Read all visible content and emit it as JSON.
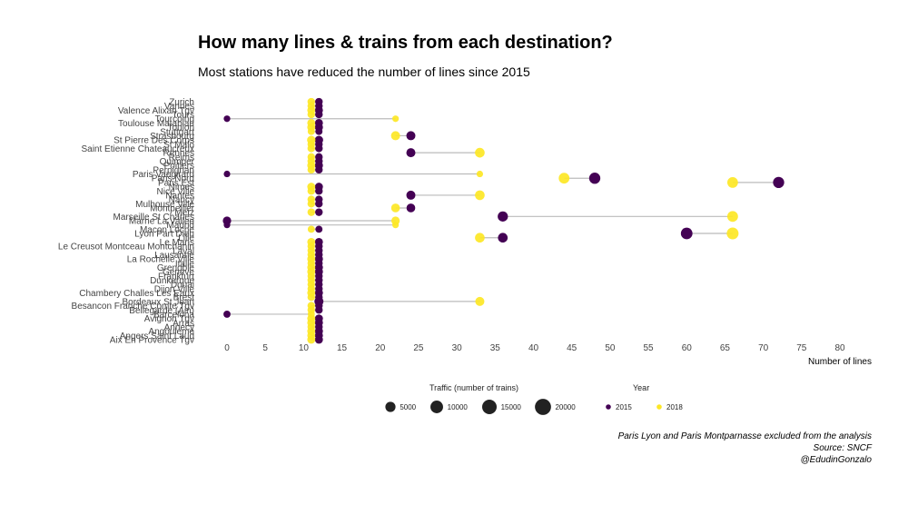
{
  "title": "How many lines & trains from each destination?",
  "subtitle": "Most stations have reduced the number of lines since 2015",
  "caption": {
    "line1": "Paris Lyon and Paris Montparnasse excluded from the analysis",
    "line2": "Source: SNCF",
    "line3": "@EdudinGonzalo"
  },
  "colors": {
    "y2015": "#440154",
    "y2018": "#FDE725",
    "segment": "#bbbbbb"
  },
  "chart_data": {
    "type": "scatter",
    "xlabel": "Number of lines",
    "xlim": [
      0,
      80
    ],
    "xticks": [
      0,
      5,
      10,
      15,
      20,
      25,
      30,
      35,
      40,
      45,
      50,
      55,
      60,
      65,
      70,
      75,
      80
    ],
    "legend": {
      "size_title": "Traffic (number of trains)",
      "size_labels": [
        "5000",
        "10000",
        "15000",
        "20000"
      ],
      "size_values": [
        5000,
        10000,
        15000,
        20000
      ],
      "year_title": "Year",
      "years": [
        "2015",
        "2018"
      ]
    },
    "stations": [
      {
        "name": "Zurich",
        "l2015": 12,
        "l2018": 11,
        "t2015": 2000,
        "t2018": 2000
      },
      {
        "name": "Vannes",
        "l2015": 12,
        "l2018": 11,
        "t2015": 2000,
        "t2018": 2000
      },
      {
        "name": "Valence Alixan Tgv",
        "l2015": 12,
        "l2018": 11,
        "t2015": 2500,
        "t2018": 2500
      },
      {
        "name": "Tours",
        "l2015": 12,
        "l2018": 11,
        "t2015": 2000,
        "t2018": 2000
      },
      {
        "name": "Tourcoing",
        "l2015": 0,
        "l2018": 22,
        "t2015": 1000,
        "t2018": 1000
      },
      {
        "name": "Toulouse Matabiau",
        "l2015": 12,
        "l2018": 11,
        "t2015": 2500,
        "t2018": 2500
      },
      {
        "name": "Toulon",
        "l2015": 12,
        "l2018": 11,
        "t2015": 2500,
        "t2018": 2500
      },
      {
        "name": "Stuttgart",
        "l2015": 12,
        "l2018": 11,
        "t2015": 1500,
        "t2018": 1500
      },
      {
        "name": "Strasbourg",
        "l2015": 24,
        "l2018": 22,
        "t2015": 4000,
        "t2018": 4000
      },
      {
        "name": "St Pierre Des Corps",
        "l2015": 12,
        "l2018": 11,
        "t2015": 3000,
        "t2018": 3000
      },
      {
        "name": "St Malo",
        "l2015": 12,
        "l2018": 11,
        "t2015": 2000,
        "t2018": 2000
      },
      {
        "name": "Saint Etienne Chateaucreux",
        "l2015": 12,
        "l2018": 11,
        "t2015": 2000,
        "t2018": 2000
      },
      {
        "name": "Rennes",
        "l2015": 24,
        "l2018": 33,
        "t2015": 4000,
        "t2018": 5000
      },
      {
        "name": "Reims",
        "l2015": 12,
        "l2018": 11,
        "t2015": 2000,
        "t2018": 2000
      },
      {
        "name": "Quimper",
        "l2015": 12,
        "l2018": 11,
        "t2015": 2000,
        "t2018": 2000
      },
      {
        "name": "Poitiers",
        "l2015": 12,
        "l2018": 11,
        "t2015": 2500,
        "t2018": 2500
      },
      {
        "name": "Perpignan",
        "l2015": 12,
        "l2018": 11,
        "t2015": 2000,
        "t2018": 2000
      },
      {
        "name": "Paris Vaugirard",
        "l2015": 0,
        "l2018": 33,
        "t2015": 1000,
        "t2018": 1000
      },
      {
        "name": "Paris Nord",
        "l2015": 48,
        "l2018": 44,
        "t2015": 8000,
        "t2018": 7000
      },
      {
        "name": "Paris Est",
        "l2015": 72,
        "l2018": 66,
        "t2015": 8000,
        "t2018": 7000
      },
      {
        "name": "Nimes",
        "l2015": 12,
        "l2018": 11,
        "t2015": 2500,
        "t2018": 2500
      },
      {
        "name": "Nice Ville",
        "l2015": 12,
        "l2018": 11,
        "t2015": 2000,
        "t2018": 2000
      },
      {
        "name": "Nantes",
        "l2015": 24,
        "l2018": 33,
        "t2015": 4000,
        "t2018": 5000
      },
      {
        "name": "Nancy",
        "l2015": 12,
        "l2018": 11,
        "t2015": 2000,
        "t2018": 2000
      },
      {
        "name": "Mulhouse Ville",
        "l2015": 12,
        "l2018": 11,
        "t2015": 2000,
        "t2018": 2000
      },
      {
        "name": "Montpellier",
        "l2015": 24,
        "l2018": 22,
        "t2015": 3500,
        "t2018": 3500
      },
      {
        "name": "Metz",
        "l2015": 12,
        "l2018": 11,
        "t2015": 2000,
        "t2018": 2000
      },
      {
        "name": "Marseille St Charles",
        "l2015": 36,
        "l2018": 66,
        "t2015": 6000,
        "t2018": 7000
      },
      {
        "name": "Marne La Vallee",
        "l2015": 0,
        "l2018": 22,
        "t2015": 3000,
        "t2018": 3000
      },
      {
        "name": "Madrid",
        "l2015": 0,
        "l2018": 22,
        "t2015": 1000,
        "t2018": 1000
      },
      {
        "name": "Macon Loche",
        "l2015": 12,
        "l2018": 11,
        "t2015": 1500,
        "t2018": 1500
      },
      {
        "name": "Lyon Part Dieu",
        "l2015": 60,
        "l2018": 66,
        "t2015": 9000,
        "t2018": 9500
      },
      {
        "name": "Lille",
        "l2015": 36,
        "l2018": 33,
        "t2015": 5000,
        "t2018": 5000
      },
      {
        "name": "Le Mans",
        "l2015": 12,
        "l2018": 11,
        "t2015": 2500,
        "t2018": 2500
      },
      {
        "name": "Le Creusot Montceau Montchanin",
        "l2015": 12,
        "l2018": 11,
        "t2015": 2000,
        "t2018": 2000
      },
      {
        "name": "Laval",
        "l2015": 12,
        "l2018": 11,
        "t2015": 2000,
        "t2018": 2000
      },
      {
        "name": "Lausanne",
        "l2015": 12,
        "l2018": 11,
        "t2015": 2000,
        "t2018": 2000
      },
      {
        "name": "La Rochelle Ville",
        "l2015": 12,
        "l2018": 11,
        "t2015": 2500,
        "t2018": 2500
      },
      {
        "name": "Italie",
        "l2015": 12,
        "l2018": 11,
        "t2015": 2000,
        "t2018": 2000
      },
      {
        "name": "Grenoble",
        "l2015": 12,
        "l2018": 11,
        "t2015": 2500,
        "t2018": 2500
      },
      {
        "name": "Geneve",
        "l2015": 12,
        "l2018": 11,
        "t2015": 2500,
        "t2018": 2500
      },
      {
        "name": "Frankfurt",
        "l2015": 12,
        "l2018": 11,
        "t2015": 2000,
        "t2018": 2000
      },
      {
        "name": "Dunkerque",
        "l2015": 12,
        "l2018": 11,
        "t2015": 2000,
        "t2018": 2000
      },
      {
        "name": "Douai",
        "l2015": 12,
        "l2018": 11,
        "t2015": 2000,
        "t2018": 2000
      },
      {
        "name": "Dijon Ville",
        "l2015": 12,
        "l2018": 11,
        "t2015": 2000,
        "t2018": 2000
      },
      {
        "name": "Chambery Challes Les Eaux",
        "l2015": 12,
        "l2018": 11,
        "t2015": 2500,
        "t2018": 2500
      },
      {
        "name": "Brest",
        "l2015": 12,
        "l2018": 11,
        "t2015": 2000,
        "t2018": 2000
      },
      {
        "name": "Bordeaux St Jean",
        "l2015": 12,
        "l2018": 33,
        "t2015": 4000,
        "t2018": 4000
      },
      {
        "name": "Besancon Franche Comte Tgv",
        "l2015": 12,
        "l2018": 11,
        "t2015": 2000,
        "t2018": 2000
      },
      {
        "name": "Bellegarde (Ain)",
        "l2015": 12,
        "l2018": 11,
        "t2015": 2000,
        "t2018": 2000
      },
      {
        "name": "Barcelona",
        "l2015": 0,
        "l2018": 11,
        "t2015": 1500,
        "t2018": 1500
      },
      {
        "name": "Avignon Tgv",
        "l2015": 12,
        "l2018": 11,
        "t2015": 2500,
        "t2018": 2500
      },
      {
        "name": "Arras",
        "l2015": 12,
        "l2018": 11,
        "t2015": 2500,
        "t2018": 2500
      },
      {
        "name": "Annecy",
        "l2015": 12,
        "l2018": 11,
        "t2015": 2000,
        "t2018": 2000
      },
      {
        "name": "Angouleme",
        "l2015": 12,
        "l2018": 11,
        "t2015": 2500,
        "t2018": 2500
      },
      {
        "name": "Angers Saint Laud",
        "l2015": 12,
        "l2018": 11,
        "t2015": 2500,
        "t2018": 2500
      },
      {
        "name": "Aix En Provence Tgv",
        "l2015": 12,
        "l2018": 11,
        "t2015": 2500,
        "t2018": 2500
      }
    ]
  }
}
